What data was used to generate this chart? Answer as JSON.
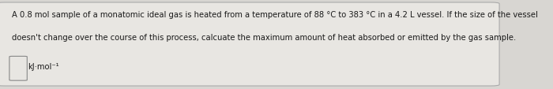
{
  "background_color": "#d8d6d2",
  "card_color": "#e8e6e2",
  "border_color": "#aaaaaa",
  "text_line1": "A 0.8 mol sample of a monatomic ideal gas is heated from a temperature of 88 °C to 383 °C in a 4.2 L vessel. If the size of the vessel",
  "text_line2": "doesn't change over the course of this process, calcuate the maximum amount of heat absorbed or emitted by the gas sample.",
  "text_fontsize": 7.2,
  "text_color": "#1a1a1a",
  "unit_label": "kJ·mol⁻¹",
  "unit_fontsize": 7.2,
  "fig_width": 7.0,
  "fig_height": 1.14
}
